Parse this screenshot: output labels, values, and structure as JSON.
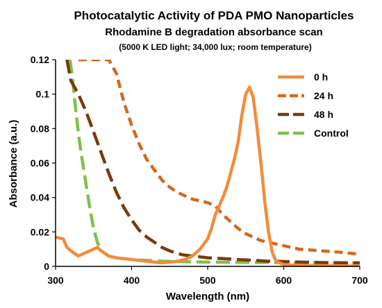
{
  "chart_data": {
    "type": "line",
    "title": "Photocatalytic Activity of PDA PMO Nanoparticles",
    "subtitle": "Rhodamine B degradation absorbance scan",
    "conditions": "(5000 K LED light; 34,000 lux; room temperature)",
    "xlabel": "Wavelength (nm)",
    "ylabel": "Absorbance (a.u.)",
    "xlim": [
      300,
      700
    ],
    "ylim": [
      0,
      0.12
    ],
    "xticks": [
      "300",
      "400",
      "500",
      "600",
      "700"
    ],
    "yticks": [
      "0",
      "0.02",
      "0.04",
      "0.06",
      "0.08",
      "0.1",
      "0.12"
    ],
    "grid": false,
    "legend_position": "right",
    "series": [
      {
        "name": "0 h",
        "color": "#f28c3c",
        "dash": "solid",
        "x": [
          300,
          310,
          315,
          320,
          330,
          340,
          350,
          355,
          360,
          370,
          380,
          400,
          420,
          440,
          460,
          470,
          480,
          490,
          500,
          505,
          510,
          515,
          520,
          525,
          530,
          535,
          540,
          545,
          550,
          555,
          560,
          565,
          570,
          575,
          580,
          585,
          590,
          600,
          620,
          650,
          700
        ],
        "y": [
          0.017,
          0.016,
          0.011,
          0.009,
          0.006,
          0.008,
          0.01,
          0.011,
          0.009,
          0.006,
          0.005,
          0.004,
          0.003,
          0.002,
          0.003,
          0.004,
          0.006,
          0.01,
          0.016,
          0.022,
          0.03,
          0.035,
          0.04,
          0.046,
          0.054,
          0.062,
          0.072,
          0.088,
          0.1,
          0.104,
          0.098,
          0.08,
          0.06,
          0.038,
          0.02,
          0.008,
          0.003,
          0.001,
          0.0005,
          0.0003,
          0.0002
        ]
      },
      {
        "name": "24 h",
        "color": "#d2691e",
        "dash": "medium",
        "x": [
          330,
          340,
          350,
          360,
          370,
          380,
          390,
          400,
          410,
          420,
          430,
          440,
          450,
          460,
          470,
          480,
          490,
          500,
          510,
          520,
          530,
          540,
          550,
          560,
          570,
          580,
          600,
          620,
          650,
          680,
          700
        ],
        "y": [
          0.12,
          0.12,
          0.12,
          0.12,
          0.12,
          0.112,
          0.095,
          0.082,
          0.071,
          0.062,
          0.056,
          0.05,
          0.046,
          0.043,
          0.041,
          0.039,
          0.038,
          0.037,
          0.035,
          0.03,
          0.026,
          0.022,
          0.019,
          0.017,
          0.015,
          0.014,
          0.012,
          0.01,
          0.009,
          0.008,
          0.007
        ]
      },
      {
        "name": "48 h",
        "color": "#7a3a0f",
        "dash": "long",
        "x": [
          315,
          320,
          330,
          340,
          350,
          360,
          370,
          380,
          390,
          400,
          410,
          420,
          430,
          440,
          450,
          460,
          470,
          480,
          490,
          500,
          520,
          540,
          560,
          580,
          600,
          620,
          650,
          700
        ],
        "y": [
          0.12,
          0.108,
          0.1,
          0.09,
          0.078,
          0.066,
          0.054,
          0.043,
          0.034,
          0.027,
          0.021,
          0.017,
          0.014,
          0.011,
          0.009,
          0.0075,
          0.0065,
          0.006,
          0.0055,
          0.005,
          0.0045,
          0.004,
          0.0035,
          0.003,
          0.0028,
          0.0025,
          0.0022,
          0.002
        ]
      },
      {
        "name": "Control",
        "color": "#7fc04d",
        "dash": "long",
        "x": [
          319,
          322,
          325,
          328,
          331,
          335,
          340,
          345,
          350,
          355,
          360,
          370,
          380,
          390,
          400,
          420,
          440,
          460,
          480,
          500,
          550,
          600,
          650,
          700
        ],
        "y": [
          0.12,
          0.11,
          0.097,
          0.085,
          0.074,
          0.062,
          0.048,
          0.034,
          0.022,
          0.014,
          0.009,
          0.006,
          0.005,
          0.0045,
          0.004,
          0.0035,
          0.003,
          0.0028,
          0.0026,
          0.0025,
          0.0023,
          0.0022,
          0.0021,
          0.002
        ]
      }
    ]
  }
}
